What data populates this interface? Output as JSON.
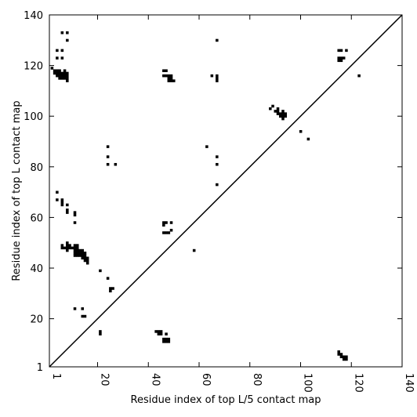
{
  "chart_data": {
    "type": "scatter",
    "title": "",
    "xlabel": "Residue index of top L/5 contact map",
    "ylabel": "Residue index of top L contact map",
    "xlim": [
      1,
      140
    ],
    "ylim": [
      1,
      140
    ],
    "x_ticks": [
      1,
      20,
      40,
      60,
      80,
      100,
      120,
      140
    ],
    "y_ticks": [
      1,
      20,
      40,
      60,
      80,
      100,
      120,
      140
    ],
    "x_tick_labels": [
      "1",
      "20",
      "40",
      "60",
      "80",
      "100",
      "120",
      "140"
    ],
    "y_tick_labels": [
      "1",
      "20",
      "40",
      "60",
      "80",
      "100",
      "120",
      "140"
    ],
    "diagonal": true,
    "marker": "square",
    "marker_color": "#000000",
    "upper_left": [
      [
        6,
        133
      ],
      [
        8,
        133
      ],
      [
        4,
        126
      ],
      [
        6,
        126
      ],
      [
        8,
        130
      ],
      [
        4,
        123
      ],
      [
        6,
        123
      ],
      [
        2,
        119
      ],
      [
        3,
        118
      ],
      [
        3,
        117
      ],
      [
        4,
        118
      ],
      [
        4,
        117
      ],
      [
        4,
        116
      ],
      [
        5,
        118
      ],
      [
        5,
        117
      ],
      [
        5,
        116
      ],
      [
        5,
        115
      ],
      [
        6,
        117
      ],
      [
        6,
        116
      ],
      [
        6,
        115
      ],
      [
        7,
        118
      ],
      [
        7,
        117
      ],
      [
        7,
        116
      ],
      [
        7,
        115
      ],
      [
        8,
        117
      ],
      [
        8,
        116
      ],
      [
        8,
        115
      ],
      [
        8,
        114
      ],
      [
        46,
        118
      ],
      [
        47,
        118
      ],
      [
        46,
        116
      ],
      [
        47,
        116
      ],
      [
        48,
        116
      ],
      [
        48,
        115
      ],
      [
        49,
        116
      ],
      [
        49,
        115
      ],
      [
        48,
        114
      ],
      [
        49,
        114
      ],
      [
        50,
        114
      ],
      [
        65,
        116
      ],
      [
        67,
        116
      ],
      [
        67,
        115
      ],
      [
        67,
        114
      ],
      [
        67,
        130
      ],
      [
        88,
        103
      ],
      [
        89,
        104
      ],
      [
        90,
        102
      ],
      [
        91,
        103
      ],
      [
        91,
        102
      ],
      [
        91,
        101
      ],
      [
        92,
        101
      ],
      [
        92,
        100
      ],
      [
        93,
        102
      ],
      [
        93,
        101
      ],
      [
        93,
        100
      ],
      [
        93,
        99
      ],
      [
        94,
        101
      ],
      [
        94,
        100
      ],
      [
        100,
        94
      ],
      [
        103,
        91
      ],
      [
        115,
        126
      ],
      [
        116,
        126
      ],
      [
        118,
        126
      ],
      [
        115,
        123
      ],
      [
        116,
        123
      ],
      [
        117,
        123
      ],
      [
        115,
        122
      ],
      [
        116,
        122
      ],
      [
        123,
        116
      ],
      [
        24,
        88
      ],
      [
        24,
        84
      ],
      [
        24,
        81
      ],
      [
        27,
        81
      ],
      [
        63,
        88
      ],
      [
        67,
        84
      ],
      [
        67,
        81
      ],
      [
        67,
        73
      ],
      [
        4,
        70
      ],
      [
        4,
        67
      ],
      [
        6,
        67
      ],
      [
        6,
        66
      ],
      [
        6,
        65
      ],
      [
        8,
        65
      ],
      [
        8,
        63
      ],
      [
        8,
        62
      ],
      [
        11,
        62
      ],
      [
        11,
        61
      ],
      [
        11,
        58
      ],
      [
        46,
        58
      ],
      [
        47,
        58
      ],
      [
        49,
        58
      ],
      [
        46,
        57
      ],
      [
        46,
        54
      ],
      [
        47,
        54
      ],
      [
        48,
        54
      ],
      [
        49,
        55
      ],
      [
        6,
        49
      ],
      [
        6,
        48
      ],
      [
        7,
        48
      ],
      [
        8,
        50
      ],
      [
        8,
        49
      ],
      [
        8,
        48
      ],
      [
        8,
        47
      ],
      [
        9,
        49
      ],
      [
        9,
        48
      ],
      [
        10,
        48
      ],
      [
        11,
        49
      ],
      [
        11,
        48
      ],
      [
        11,
        47
      ],
      [
        11,
        46
      ],
      [
        11,
        45
      ],
      [
        12,
        49
      ],
      [
        12,
        48
      ],
      [
        12,
        47
      ],
      [
        12,
        46
      ],
      [
        12,
        45
      ],
      [
        13,
        47
      ],
      [
        13,
        46
      ],
      [
        13,
        45
      ],
      [
        14,
        47
      ],
      [
        14,
        46
      ],
      [
        14,
        45
      ],
      [
        14,
        44
      ],
      [
        15,
        46
      ],
      [
        15,
        45
      ],
      [
        15,
        44
      ],
      [
        15,
        43
      ],
      [
        16,
        44
      ],
      [
        16,
        43
      ],
      [
        16,
        42
      ],
      [
        58,
        47
      ],
      [
        21,
        39
      ],
      [
        24,
        36
      ],
      [
        25,
        32
      ],
      [
        25,
        31
      ],
      [
        26,
        32
      ],
      [
        11,
        24
      ],
      [
        14,
        24
      ],
      [
        14,
        21
      ],
      [
        15,
        21
      ],
      [
        21,
        15
      ],
      [
        21,
        14
      ],
      [
        43,
        15
      ],
      [
        44,
        15
      ],
      [
        44,
        14
      ],
      [
        45,
        15
      ],
      [
        45,
        14
      ],
      [
        47,
        14
      ],
      [
        46,
        12
      ],
      [
        47,
        12
      ],
      [
        47,
        11
      ],
      [
        46,
        11
      ],
      [
        48,
        12
      ],
      [
        48,
        11
      ],
      [
        115,
        7
      ],
      [
        115,
        6
      ],
      [
        116,
        6
      ],
      [
        116,
        5
      ],
      [
        117,
        5
      ],
      [
        117,
        4
      ],
      [
        118,
        5
      ],
      [
        118,
        4
      ]
    ]
  }
}
